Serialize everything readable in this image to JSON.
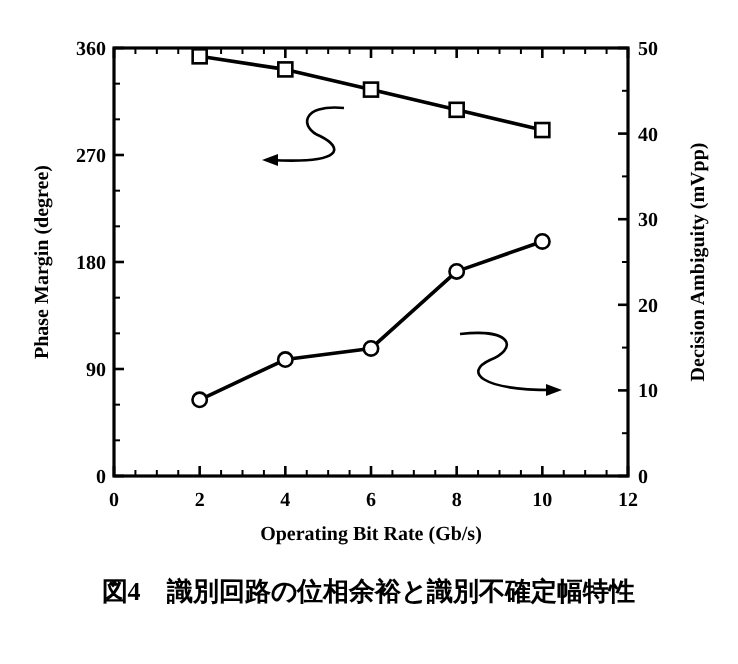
{
  "chart_data": {
    "type": "line",
    "xlabel": "Operating Bit Rate (Gb/s)",
    "ylabel": "Phase Margin (degree)",
    "y2label": "Decision Ambiguity (mVpp)",
    "annotations": [
      "図4　識別回路の位相余裕と識別不確定幅特性"
    ],
    "x": [
      2,
      4,
      6,
      8,
      10
    ],
    "xlim": [
      0,
      12
    ],
    "xticks": [
      0,
      2,
      4,
      6,
      8,
      10,
      12
    ],
    "ylim": [
      0,
      360
    ],
    "yticks": [
      0,
      90,
      180,
      270,
      360
    ],
    "y2lim": [
      0,
      50
    ],
    "y2ticks": [
      0,
      10,
      20,
      30,
      40,
      50
    ],
    "grid": false,
    "line_style": "solid",
    "series": [
      {
        "color": "#000000",
        "marker": "square",
        "values": [
          353,
          342,
          325,
          308,
          291
        ]
      },
      {
        "color": "#000000",
        "marker": "circle",
        "axis": "y2",
        "values": [
          8.9,
          13.6,
          14.9,
          23.9,
          27.4
        ]
      }
    ]
  }
}
